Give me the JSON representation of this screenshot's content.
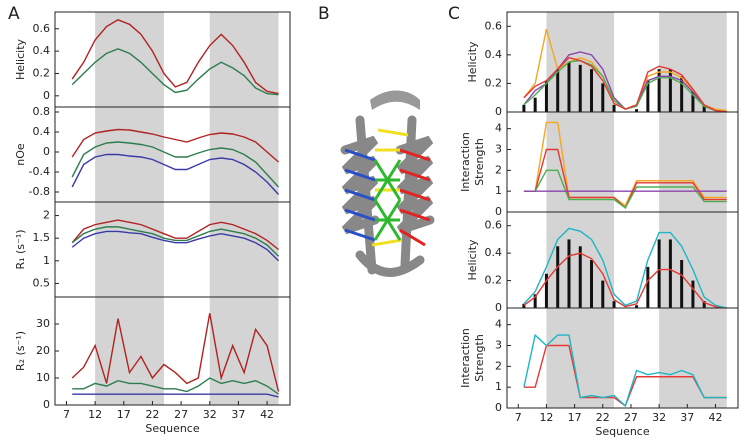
{
  "panels": {
    "a": "A",
    "b": "B",
    "c": "C"
  },
  "chart_data": [
    {
      "type": "line",
      "ylabel": [
        "Helicity"
      ],
      "x": [
        8,
        10,
        12,
        14,
        16,
        18,
        20,
        22,
        24,
        26,
        28,
        30,
        32,
        34,
        36,
        38,
        40,
        42,
        44
      ],
      "xlim": [
        5,
        46
      ],
      "bands": [
        [
          12,
          24
        ],
        [
          32,
          44
        ]
      ],
      "ylim": [
        -0.1,
        0.75
      ],
      "yticks": [
        0,
        0.2,
        0.4,
        0.6
      ],
      "series": [
        {
          "color": "#b22222",
          "values": [
            0.15,
            0.3,
            0.5,
            0.62,
            0.68,
            0.64,
            0.55,
            0.4,
            0.2,
            0.08,
            0.12,
            0.3,
            0.45,
            0.55,
            0.45,
            0.3,
            0.12,
            0.04,
            0.02
          ]
        },
        {
          "color": "#2e7d4f",
          "values": [
            0.1,
            0.2,
            0.3,
            0.38,
            0.42,
            0.38,
            0.3,
            0.2,
            0.1,
            0.03,
            0.05,
            0.15,
            0.24,
            0.3,
            0.25,
            0.18,
            0.07,
            0.02,
            0.01
          ]
        }
      ]
    },
    {
      "type": "line",
      "ylabel": [
        "nOe"
      ],
      "x": [
        8,
        10,
        12,
        14,
        16,
        18,
        20,
        22,
        24,
        26,
        28,
        30,
        32,
        34,
        36,
        38,
        40,
        42,
        44
      ],
      "xlim": [
        5,
        46
      ],
      "bands": [
        [
          12,
          24
        ],
        [
          32,
          44
        ]
      ],
      "ylim": [
        -1,
        0.9
      ],
      "yticks": [
        -0.8,
        -0.4,
        0,
        0.4,
        0.8
      ],
      "series": [
        {
          "color": "#b22222",
          "values": [
            -0.1,
            0.25,
            0.38,
            0.42,
            0.45,
            0.44,
            0.4,
            0.36,
            0.3,
            0.25,
            0.2,
            0.28,
            0.35,
            0.38,
            0.36,
            0.3,
            0.2,
            0.0,
            -0.2
          ]
        },
        {
          "color": "#2e7d4f",
          "values": [
            -0.5,
            -0.05,
            0.1,
            0.18,
            0.2,
            0.18,
            0.15,
            0.1,
            0.0,
            -0.1,
            -0.1,
            -0.02,
            0.05,
            0.08,
            0.05,
            -0.05,
            -0.2,
            -0.45,
            -0.7
          ]
        },
        {
          "color": "#3a3aa8",
          "values": [
            -0.7,
            -0.25,
            -0.1,
            -0.05,
            -0.05,
            -0.08,
            -0.1,
            -0.15,
            -0.25,
            -0.35,
            -0.35,
            -0.25,
            -0.15,
            -0.12,
            -0.15,
            -0.25,
            -0.4,
            -0.6,
            -0.85
          ]
        }
      ]
    },
    {
      "type": "line",
      "ylabel": [
        "R₁ (s⁻¹)"
      ],
      "x": [
        8,
        10,
        12,
        14,
        16,
        18,
        20,
        22,
        24,
        26,
        28,
        30,
        32,
        34,
        36,
        38,
        40,
        42,
        44
      ],
      "xlim": [
        5,
        46
      ],
      "bands": [
        [
          12,
          24
        ],
        [
          32,
          44
        ]
      ],
      "ylim": [
        0.2,
        2.3
      ],
      "yticks": [
        0.5,
        1,
        1.5,
        2
      ],
      "series": [
        {
          "color": "#b22222",
          "values": [
            1.4,
            1.7,
            1.8,
            1.85,
            1.9,
            1.85,
            1.8,
            1.7,
            1.6,
            1.5,
            1.5,
            1.65,
            1.8,
            1.85,
            1.8,
            1.7,
            1.6,
            1.45,
            1.25
          ]
        },
        {
          "color": "#2e7d4f",
          "values": [
            1.4,
            1.6,
            1.7,
            1.75,
            1.75,
            1.7,
            1.65,
            1.6,
            1.5,
            1.45,
            1.45,
            1.55,
            1.65,
            1.7,
            1.65,
            1.6,
            1.5,
            1.35,
            1.1
          ]
        },
        {
          "color": "#3a3aa8",
          "values": [
            1.3,
            1.5,
            1.6,
            1.65,
            1.65,
            1.62,
            1.6,
            1.52,
            1.45,
            1.4,
            1.4,
            1.48,
            1.55,
            1.6,
            1.55,
            1.5,
            1.4,
            1.25,
            1.0
          ]
        }
      ]
    },
    {
      "type": "line",
      "ylabel": [
        "R₂ (s⁻¹)"
      ],
      "xlabel": "Sequence",
      "x": [
        8,
        10,
        12,
        14,
        16,
        18,
        20,
        22,
        24,
        26,
        28,
        30,
        32,
        34,
        36,
        38,
        40,
        42,
        44
      ],
      "xlim": [
        5,
        46
      ],
      "xticks": [
        7,
        12,
        17,
        22,
        27,
        32,
        37,
        42
      ],
      "bands": [
        [
          12,
          24
        ],
        [
          32,
          44
        ]
      ],
      "ylim": [
        0,
        40
      ],
      "yticks": [
        0,
        10,
        20,
        30
      ],
      "series": [
        {
          "color": "#b22222",
          "values": [
            10,
            14,
            22,
            8,
            32,
            12,
            18,
            10,
            15,
            12,
            8,
            10,
            34,
            10,
            22,
            12,
            28,
            22,
            5
          ]
        },
        {
          "color": "#2e7d4f",
          "values": [
            6,
            6,
            8,
            7,
            9,
            8,
            8,
            7,
            6,
            6,
            5,
            7,
            10,
            8,
            9,
            8,
            9,
            7,
            4
          ]
        },
        {
          "color": "#3a3aa8",
          "values": [
            4,
            4,
            4,
            4,
            4,
            4,
            4,
            4,
            4,
            4,
            4,
            4,
            4,
            4,
            4,
            4,
            4,
            4,
            3
          ]
        }
      ]
    },
    {
      "type": "combo",
      "ylabel": [
        "Helicity"
      ],
      "x": [
        8,
        10,
        12,
        14,
        16,
        18,
        20,
        22,
        24,
        26,
        28,
        30,
        32,
        34,
        36,
        38,
        40,
        42,
        44
      ],
      "xlim": [
        5,
        46
      ],
      "bands": [
        [
          12,
          24
        ],
        [
          32,
          44
        ]
      ],
      "ylim": [
        0,
        0.7
      ],
      "yticks": [
        0,
        0.2,
        0.4,
        0.6
      ],
      "bars": {
        "color": "#111",
        "values": [
          0.05,
          0.1,
          0.22,
          0.3,
          0.35,
          0.33,
          0.3,
          0.2,
          0.05,
          0,
          0.02,
          0.22,
          0.3,
          0.3,
          0.25,
          0.15,
          0.05,
          0,
          0
        ]
      },
      "series": [
        {
          "color": "#f5a623",
          "values": [
            0.1,
            0.2,
            0.58,
            0.3,
            0.35,
            0.38,
            0.35,
            0.25,
            0.08,
            0.02,
            0.05,
            0.25,
            0.28,
            0.28,
            0.24,
            0.15,
            0.05,
            0.02,
            0.01
          ]
        },
        {
          "color": "#8e44ad",
          "values": [
            0.05,
            0.15,
            0.2,
            0.3,
            0.4,
            0.42,
            0.4,
            0.3,
            0.1,
            0.02,
            0.05,
            0.22,
            0.25,
            0.25,
            0.22,
            0.14,
            0.04,
            0.01,
            0
          ]
        },
        {
          "color": "#4caf50",
          "values": [
            0.05,
            0.12,
            0.2,
            0.28,
            0.35,
            0.36,
            0.33,
            0.25,
            0.08,
            0.02,
            0.04,
            0.2,
            0.24,
            0.24,
            0.2,
            0.12,
            0.04,
            0.01,
            0
          ]
        },
        {
          "color": "#e53935",
          "values": [
            0.1,
            0.18,
            0.22,
            0.3,
            0.38,
            0.36,
            0.32,
            0.22,
            0.06,
            0.02,
            0.05,
            0.28,
            0.32,
            0.3,
            0.26,
            0.16,
            0.05,
            0.01,
            0
          ]
        }
      ]
    },
    {
      "type": "line",
      "ylabel": [
        "Interaction",
        "Strength"
      ],
      "x": [
        8,
        10,
        12,
        14,
        16,
        18,
        20,
        22,
        24,
        26,
        28,
        30,
        32,
        34,
        36,
        38,
        40,
        42,
        44
      ],
      "xlim": [
        5,
        46
      ],
      "bands": [
        [
          12,
          24
        ],
        [
          32,
          44
        ]
      ],
      "ylim": [
        0,
        4.8
      ],
      "yticks": [
        0,
        1,
        2,
        3,
        4
      ],
      "series": [
        {
          "color": "#f5a623",
          "values": [
            1,
            1,
            4.3,
            4.3,
            0.7,
            0.7,
            0.7,
            0.7,
            0.7,
            0.3,
            1.5,
            1.5,
            1.5,
            1.5,
            1.5,
            1.5,
            0.7,
            0.7,
            0.7
          ]
        },
        {
          "color": "#e53935",
          "values": [
            1,
            1,
            3,
            3,
            0.7,
            0.7,
            0.7,
            0.7,
            0.7,
            0.2,
            1.4,
            1.4,
            1.4,
            1.4,
            1.4,
            1.4,
            0.6,
            0.6,
            0.6
          ]
        },
        {
          "color": "#4caf50",
          "values": [
            1,
            1,
            2,
            2,
            0.6,
            0.6,
            0.6,
            0.6,
            0.6,
            0.2,
            1.2,
            1.2,
            1.2,
            1.2,
            1.2,
            1.2,
            0.5,
            0.5,
            0.5
          ]
        },
        {
          "color": "#8e44ad",
          "values": [
            1,
            1,
            1,
            1,
            1,
            1,
            1,
            1,
            1,
            1,
            1,
            1,
            1,
            1,
            1,
            1,
            1,
            1,
            1
          ]
        }
      ]
    },
    {
      "type": "combo",
      "ylabel": [
        "Helicity"
      ],
      "x": [
        8,
        10,
        12,
        14,
        16,
        18,
        20,
        22,
        24,
        26,
        28,
        30,
        32,
        34,
        36,
        38,
        40,
        42,
        44
      ],
      "xlim": [
        5,
        46
      ],
      "bands": [
        [
          12,
          24
        ],
        [
          32,
          44
        ]
      ],
      "ylim": [
        0,
        0.7
      ],
      "yticks": [
        0,
        0.2,
        0.4,
        0.6
      ],
      "bars": {
        "color": "#111",
        "values": [
          0.03,
          0.1,
          0.25,
          0.45,
          0.5,
          0.45,
          0.35,
          0.2,
          0.05,
          0,
          0.02,
          0.3,
          0.5,
          0.5,
          0.35,
          0.2,
          0.05,
          0,
          0
        ]
      },
      "series": [
        {
          "color": "#e53935",
          "values": [
            0.02,
            0.08,
            0.2,
            0.3,
            0.38,
            0.4,
            0.36,
            0.25,
            0.06,
            0.01,
            0.03,
            0.2,
            0.28,
            0.28,
            0.24,
            0.14,
            0.04,
            0.01,
            0
          ]
        },
        {
          "color": "#1fb5c4",
          "values": [
            0.03,
            0.12,
            0.3,
            0.5,
            0.58,
            0.56,
            0.5,
            0.35,
            0.1,
            0.02,
            0.05,
            0.35,
            0.55,
            0.55,
            0.45,
            0.28,
            0.08,
            0.02,
            0
          ]
        }
      ]
    },
    {
      "type": "line",
      "ylabel": [
        "Interaction",
        "Strength"
      ],
      "xlabel": "Sequence",
      "x": [
        8,
        10,
        12,
        14,
        16,
        18,
        20,
        22,
        24,
        26,
        28,
        30,
        32,
        34,
        36,
        38,
        40,
        42,
        44
      ],
      "xlim": [
        5,
        46
      ],
      "xticks": [
        7,
        12,
        17,
        22,
        27,
        32,
        37,
        42
      ],
      "bands": [
        [
          12,
          24
        ],
        [
          32,
          44
        ]
      ],
      "ylim": [
        0,
        4.8
      ],
      "yticks": [
        0,
        1,
        2,
        3,
        4
      ],
      "series": [
        {
          "color": "#e53935",
          "values": [
            1,
            1,
            3,
            3,
            3,
            0.5,
            0.5,
            0.5,
            0.5,
            0.1,
            1.5,
            1.5,
            1.5,
            1.5,
            1.5,
            1.5,
            0.5,
            0.5,
            0.5
          ]
        },
        {
          "color": "#1fb5c4",
          "values": [
            1,
            3.5,
            3.0,
            3.5,
            3.5,
            0.5,
            0.6,
            0.5,
            0.6,
            0.1,
            1.8,
            1.6,
            1.7,
            1.6,
            1.8,
            1.6,
            0.5,
            0.5,
            0.5
          ]
        }
      ]
    }
  ]
}
